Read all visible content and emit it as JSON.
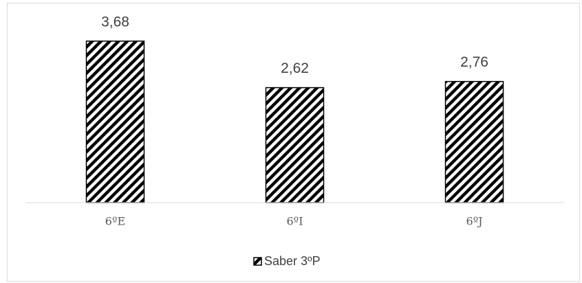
{
  "chart_data": {
    "type": "bar",
    "categories": [
      "6ºE",
      "6ºI",
      "6ºJ"
    ],
    "series": [
      {
        "name": "Saber 3ºP",
        "color": "#000000",
        "values": [
          3.68,
          2.62,
          2.76
        ],
        "value_labels": [
          "3,68",
          "2,62",
          "2,76"
        ]
      }
    ]
  }
}
